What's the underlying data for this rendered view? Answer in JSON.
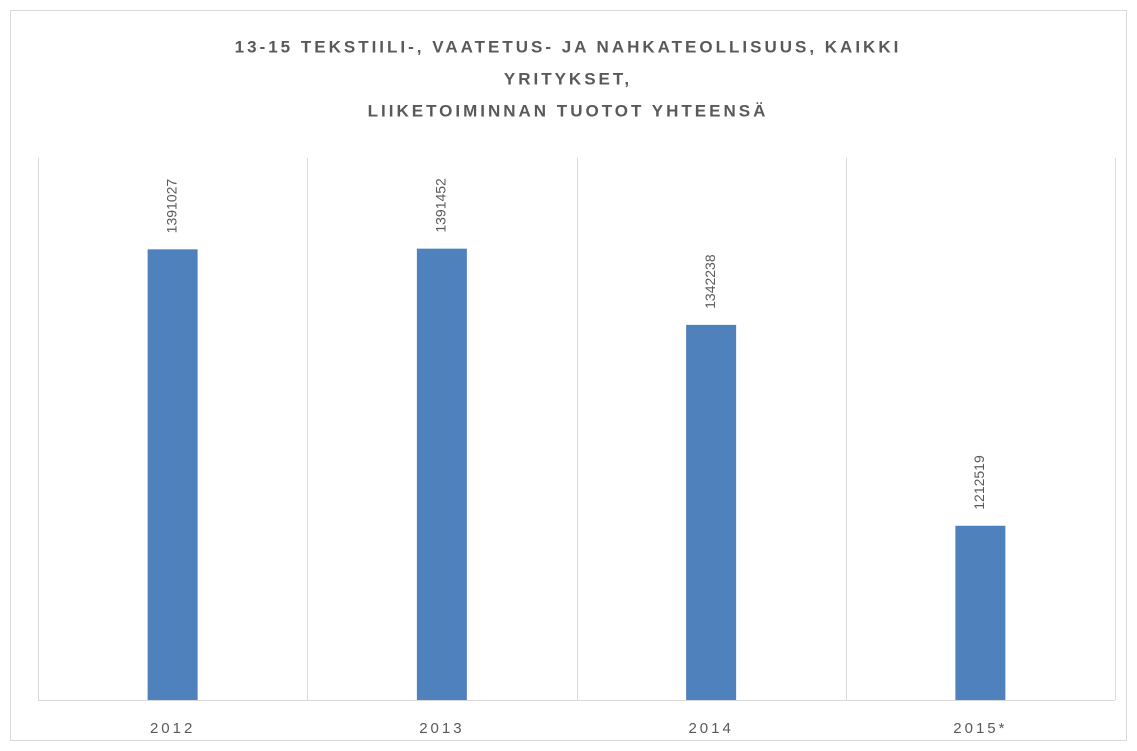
{
  "chart_data": {
    "type": "bar",
    "title": [
      "13-15 TEKSTIILI-, VAATETUS- JA NAHKATEOLLISUUS, KAIKKI",
      "YRITYKSET,",
      "LIIKETOIMINNAN TUOTOT YHTEENSÄ"
    ],
    "categories": [
      "2012",
      "2013",
      "2014",
      "2015*"
    ],
    "values": [
      1391027,
      1391452,
      1342238,
      1212519
    ],
    "color": "#4f81bd",
    "ylim": [
      1100000,
      1450000
    ],
    "grid": true
  }
}
